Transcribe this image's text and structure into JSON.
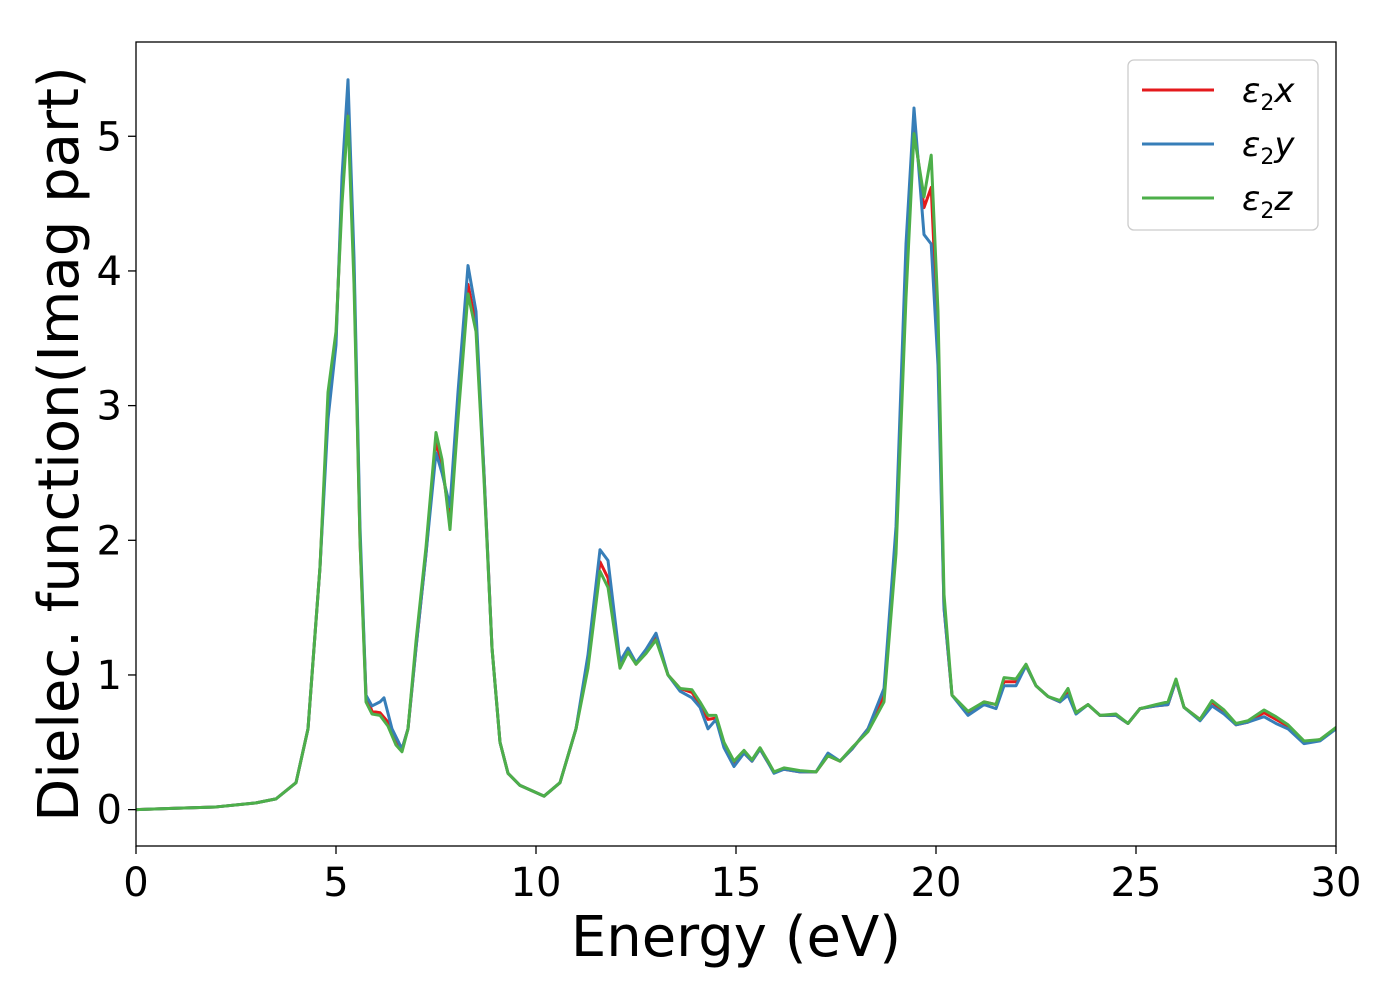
{
  "chart_data": {
    "type": "line",
    "xlabel": "Energy (eV)",
    "ylabel": "Dielec. function(Imag part)",
    "xlim": [
      0,
      30
    ],
    "ylim": [
      -0.27,
      5.7
    ],
    "x_ticks": [
      0,
      5,
      10,
      15,
      20,
      25,
      30
    ],
    "y_ticks": [
      0,
      1,
      2,
      3,
      4,
      5
    ],
    "grid": false,
    "legend_position": "top-right",
    "series": [
      {
        "name": "ε2x",
        "legend": {
          "base": "ε",
          "sub": "2",
          "tail": "x"
        },
        "color": "#e41a1c",
        "points": [
          [
            0,
            0
          ],
          [
            1,
            0.01
          ],
          [
            2,
            0.02
          ],
          [
            3,
            0.05
          ],
          [
            3.5,
            0.08
          ],
          [
            4,
            0.2
          ],
          [
            4.3,
            0.6
          ],
          [
            4.6,
            1.8
          ],
          [
            4.8,
            3.0
          ],
          [
            5.0,
            3.5
          ],
          [
            5.15,
            4.6
          ],
          [
            5.3,
            5.27
          ],
          [
            5.45,
            4.0
          ],
          [
            5.6,
            2.0
          ],
          [
            5.75,
            0.85
          ],
          [
            5.9,
            0.73
          ],
          [
            6.1,
            0.72
          ],
          [
            6.3,
            0.65
          ],
          [
            6.5,
            0.5
          ],
          [
            6.65,
            0.45
          ],
          [
            6.8,
            0.6
          ],
          [
            7.0,
            1.2
          ],
          [
            7.25,
            1.9
          ],
          [
            7.5,
            2.74
          ],
          [
            7.65,
            2.55
          ],
          [
            7.85,
            2.15
          ],
          [
            8.05,
            3.0
          ],
          [
            8.3,
            3.9
          ],
          [
            8.5,
            3.6
          ],
          [
            8.7,
            2.5
          ],
          [
            8.9,
            1.2
          ],
          [
            9.1,
            0.5
          ],
          [
            9.3,
            0.27
          ],
          [
            9.6,
            0.18
          ],
          [
            9.9,
            0.14
          ],
          [
            10.2,
            0.1
          ],
          [
            10.6,
            0.2
          ],
          [
            11.0,
            0.6
          ],
          [
            11.3,
            1.1
          ],
          [
            11.6,
            1.84
          ],
          [
            11.8,
            1.72
          ],
          [
            12.1,
            1.1
          ],
          [
            12.3,
            1.19
          ],
          [
            12.5,
            1.08
          ],
          [
            12.75,
            1.18
          ],
          [
            13.0,
            1.28
          ],
          [
            13.3,
            1.0
          ],
          [
            13.6,
            0.9
          ],
          [
            13.9,
            0.87
          ],
          [
            14.1,
            0.78
          ],
          [
            14.3,
            0.67
          ],
          [
            14.5,
            0.68
          ],
          [
            14.7,
            0.48
          ],
          [
            14.95,
            0.35
          ],
          [
            15.2,
            0.42
          ],
          [
            15.4,
            0.36
          ],
          [
            15.6,
            0.45
          ],
          [
            15.8,
            0.35
          ],
          [
            15.95,
            0.28
          ],
          [
            16.2,
            0.3
          ],
          [
            16.6,
            0.28
          ],
          [
            17.0,
            0.28
          ],
          [
            17.3,
            0.4
          ],
          [
            17.6,
            0.36
          ],
          [
            17.9,
            0.45
          ],
          [
            18.3,
            0.6
          ],
          [
            18.7,
            0.85
          ],
          [
            19.0,
            2.0
          ],
          [
            19.25,
            4.0
          ],
          [
            19.45,
            5.08
          ],
          [
            19.7,
            4.47
          ],
          [
            19.88,
            4.62
          ],
          [
            20.05,
            3.5
          ],
          [
            20.2,
            1.5
          ],
          [
            20.4,
            0.85
          ],
          [
            20.8,
            0.72
          ],
          [
            21.2,
            0.8
          ],
          [
            21.5,
            0.78
          ],
          [
            21.7,
            0.95
          ],
          [
            22.0,
            0.95
          ],
          [
            22.25,
            1.07
          ],
          [
            22.5,
            0.92
          ],
          [
            22.8,
            0.84
          ],
          [
            23.1,
            0.8
          ],
          [
            23.3,
            0.88
          ],
          [
            23.5,
            0.72
          ],
          [
            23.8,
            0.78
          ],
          [
            24.1,
            0.7
          ],
          [
            24.5,
            0.7
          ],
          [
            24.8,
            0.64
          ],
          [
            25.1,
            0.75
          ],
          [
            25.5,
            0.77
          ],
          [
            25.8,
            0.78
          ],
          [
            26.0,
            0.96
          ],
          [
            26.2,
            0.76
          ],
          [
            26.6,
            0.67
          ],
          [
            26.9,
            0.8
          ],
          [
            27.2,
            0.72
          ],
          [
            27.5,
            0.63
          ],
          [
            27.8,
            0.65
          ],
          [
            28.2,
            0.72
          ],
          [
            28.5,
            0.67
          ],
          [
            28.8,
            0.62
          ],
          [
            29.2,
            0.5
          ],
          [
            29.6,
            0.52
          ],
          [
            30,
            0.6
          ]
        ]
      },
      {
        "name": "ε2y",
        "legend": {
          "base": "ε",
          "sub": "2",
          "tail": "y"
        },
        "color": "#377eb8",
        "points": [
          [
            0,
            0
          ],
          [
            1,
            0.01
          ],
          [
            2,
            0.02
          ],
          [
            3,
            0.05
          ],
          [
            3.5,
            0.08
          ],
          [
            4,
            0.2
          ],
          [
            4.3,
            0.6
          ],
          [
            4.6,
            1.8
          ],
          [
            4.8,
            2.9
          ],
          [
            5.0,
            3.45
          ],
          [
            5.15,
            4.7
          ],
          [
            5.3,
            5.42
          ],
          [
            5.45,
            4.1
          ],
          [
            5.6,
            2.1
          ],
          [
            5.75,
            0.85
          ],
          [
            5.9,
            0.77
          ],
          [
            6.1,
            0.8
          ],
          [
            6.2,
            0.83
          ],
          [
            6.4,
            0.6
          ],
          [
            6.65,
            0.45
          ],
          [
            6.8,
            0.6
          ],
          [
            7.0,
            1.2
          ],
          [
            7.25,
            1.9
          ],
          [
            7.5,
            2.65
          ],
          [
            7.65,
            2.5
          ],
          [
            7.85,
            2.25
          ],
          [
            8.05,
            3.1
          ],
          [
            8.3,
            4.04
          ],
          [
            8.5,
            3.7
          ],
          [
            8.7,
            2.5
          ],
          [
            8.9,
            1.2
          ],
          [
            9.1,
            0.5
          ],
          [
            9.3,
            0.27
          ],
          [
            9.6,
            0.18
          ],
          [
            9.9,
            0.14
          ],
          [
            10.2,
            0.1
          ],
          [
            10.6,
            0.2
          ],
          [
            11.0,
            0.6
          ],
          [
            11.3,
            1.15
          ],
          [
            11.6,
            1.93
          ],
          [
            11.8,
            1.85
          ],
          [
            12.1,
            1.1
          ],
          [
            12.3,
            1.2
          ],
          [
            12.5,
            1.09
          ],
          [
            12.75,
            1.19
          ],
          [
            13.0,
            1.31
          ],
          [
            13.3,
            1.0
          ],
          [
            13.6,
            0.88
          ],
          [
            13.9,
            0.83
          ],
          [
            14.1,
            0.76
          ],
          [
            14.3,
            0.6
          ],
          [
            14.5,
            0.67
          ],
          [
            14.7,
            0.46
          ],
          [
            14.95,
            0.32
          ],
          [
            15.2,
            0.42
          ],
          [
            15.4,
            0.36
          ],
          [
            15.6,
            0.45
          ],
          [
            15.8,
            0.35
          ],
          [
            15.95,
            0.27
          ],
          [
            16.2,
            0.3
          ],
          [
            16.6,
            0.28
          ],
          [
            17.0,
            0.28
          ],
          [
            17.3,
            0.42
          ],
          [
            17.6,
            0.36
          ],
          [
            17.9,
            0.45
          ],
          [
            18.3,
            0.6
          ],
          [
            18.7,
            0.9
          ],
          [
            19.0,
            2.1
          ],
          [
            19.25,
            4.2
          ],
          [
            19.45,
            5.21
          ],
          [
            19.7,
            4.27
          ],
          [
            19.88,
            4.2
          ],
          [
            20.05,
            3.3
          ],
          [
            20.2,
            1.5
          ],
          [
            20.4,
            0.85
          ],
          [
            20.8,
            0.7
          ],
          [
            21.2,
            0.78
          ],
          [
            21.5,
            0.75
          ],
          [
            21.7,
            0.92
          ],
          [
            22.0,
            0.92
          ],
          [
            22.25,
            1.07
          ],
          [
            22.5,
            0.92
          ],
          [
            22.8,
            0.84
          ],
          [
            23.1,
            0.8
          ],
          [
            23.3,
            0.85
          ],
          [
            23.5,
            0.71
          ],
          [
            23.8,
            0.78
          ],
          [
            24.1,
            0.7
          ],
          [
            24.5,
            0.7
          ],
          [
            24.8,
            0.64
          ],
          [
            25.1,
            0.75
          ],
          [
            25.5,
            0.77
          ],
          [
            25.8,
            0.78
          ],
          [
            26.0,
            0.96
          ],
          [
            26.2,
            0.76
          ],
          [
            26.6,
            0.66
          ],
          [
            26.9,
            0.77
          ],
          [
            27.2,
            0.71
          ],
          [
            27.5,
            0.63
          ],
          [
            27.8,
            0.65
          ],
          [
            28.2,
            0.69
          ],
          [
            28.5,
            0.64
          ],
          [
            28.8,
            0.6
          ],
          [
            29.2,
            0.49
          ],
          [
            29.6,
            0.51
          ],
          [
            30,
            0.6
          ]
        ]
      },
      {
        "name": "ε2z",
        "legend": {
          "base": "ε",
          "sub": "2",
          "tail": "z"
        },
        "color": "#4daf4a",
        "points": [
          [
            0,
            0
          ],
          [
            1,
            0.01
          ],
          [
            2,
            0.02
          ],
          [
            3,
            0.05
          ],
          [
            3.5,
            0.08
          ],
          [
            4,
            0.2
          ],
          [
            4.3,
            0.6
          ],
          [
            4.6,
            1.8
          ],
          [
            4.8,
            3.1
          ],
          [
            5.0,
            3.55
          ],
          [
            5.15,
            4.5
          ],
          [
            5.3,
            5.15
          ],
          [
            5.45,
            3.9
          ],
          [
            5.6,
            2.0
          ],
          [
            5.75,
            0.8
          ],
          [
            5.9,
            0.71
          ],
          [
            6.1,
            0.7
          ],
          [
            6.3,
            0.62
          ],
          [
            6.5,
            0.48
          ],
          [
            6.65,
            0.43
          ],
          [
            6.8,
            0.6
          ],
          [
            7.0,
            1.25
          ],
          [
            7.25,
            1.95
          ],
          [
            7.5,
            2.8
          ],
          [
            7.65,
            2.6
          ],
          [
            7.85,
            2.08
          ],
          [
            8.05,
            2.9
          ],
          [
            8.3,
            3.83
          ],
          [
            8.5,
            3.55
          ],
          [
            8.7,
            2.45
          ],
          [
            8.9,
            1.2
          ],
          [
            9.1,
            0.5
          ],
          [
            9.3,
            0.27
          ],
          [
            9.6,
            0.18
          ],
          [
            9.9,
            0.14
          ],
          [
            10.2,
            0.1
          ],
          [
            10.6,
            0.2
          ],
          [
            11.0,
            0.6
          ],
          [
            11.3,
            1.05
          ],
          [
            11.6,
            1.77
          ],
          [
            11.8,
            1.65
          ],
          [
            12.1,
            1.05
          ],
          [
            12.3,
            1.17
          ],
          [
            12.5,
            1.08
          ],
          [
            12.75,
            1.16
          ],
          [
            13.0,
            1.26
          ],
          [
            13.3,
            1.0
          ],
          [
            13.6,
            0.9
          ],
          [
            13.9,
            0.89
          ],
          [
            14.1,
            0.8
          ],
          [
            14.3,
            0.7
          ],
          [
            14.5,
            0.7
          ],
          [
            14.7,
            0.5
          ],
          [
            14.95,
            0.36
          ],
          [
            15.2,
            0.44
          ],
          [
            15.4,
            0.37
          ],
          [
            15.6,
            0.46
          ],
          [
            15.8,
            0.36
          ],
          [
            15.95,
            0.28
          ],
          [
            16.2,
            0.31
          ],
          [
            16.6,
            0.29
          ],
          [
            17.0,
            0.28
          ],
          [
            17.3,
            0.4
          ],
          [
            17.6,
            0.36
          ],
          [
            17.9,
            0.46
          ],
          [
            18.3,
            0.58
          ],
          [
            18.7,
            0.8
          ],
          [
            19.0,
            1.9
          ],
          [
            19.25,
            3.8
          ],
          [
            19.45,
            5.02
          ],
          [
            19.7,
            4.55
          ],
          [
            19.88,
            4.86
          ],
          [
            20.05,
            3.7
          ],
          [
            20.2,
            1.6
          ],
          [
            20.4,
            0.85
          ],
          [
            20.8,
            0.73
          ],
          [
            21.2,
            0.8
          ],
          [
            21.5,
            0.78
          ],
          [
            21.7,
            0.98
          ],
          [
            22.0,
            0.97
          ],
          [
            22.25,
            1.08
          ],
          [
            22.5,
            0.92
          ],
          [
            22.8,
            0.84
          ],
          [
            23.1,
            0.81
          ],
          [
            23.3,
            0.9
          ],
          [
            23.5,
            0.72
          ],
          [
            23.8,
            0.78
          ],
          [
            24.1,
            0.7
          ],
          [
            24.5,
            0.71
          ],
          [
            24.8,
            0.64
          ],
          [
            25.1,
            0.75
          ],
          [
            25.5,
            0.78
          ],
          [
            25.8,
            0.8
          ],
          [
            26.0,
            0.97
          ],
          [
            26.2,
            0.76
          ],
          [
            26.6,
            0.67
          ],
          [
            26.9,
            0.81
          ],
          [
            27.2,
            0.74
          ],
          [
            27.5,
            0.64
          ],
          [
            27.8,
            0.66
          ],
          [
            28.2,
            0.74
          ],
          [
            28.5,
            0.69
          ],
          [
            28.8,
            0.63
          ],
          [
            29.2,
            0.51
          ],
          [
            29.6,
            0.52
          ],
          [
            30,
            0.61
          ]
        ]
      }
    ]
  }
}
